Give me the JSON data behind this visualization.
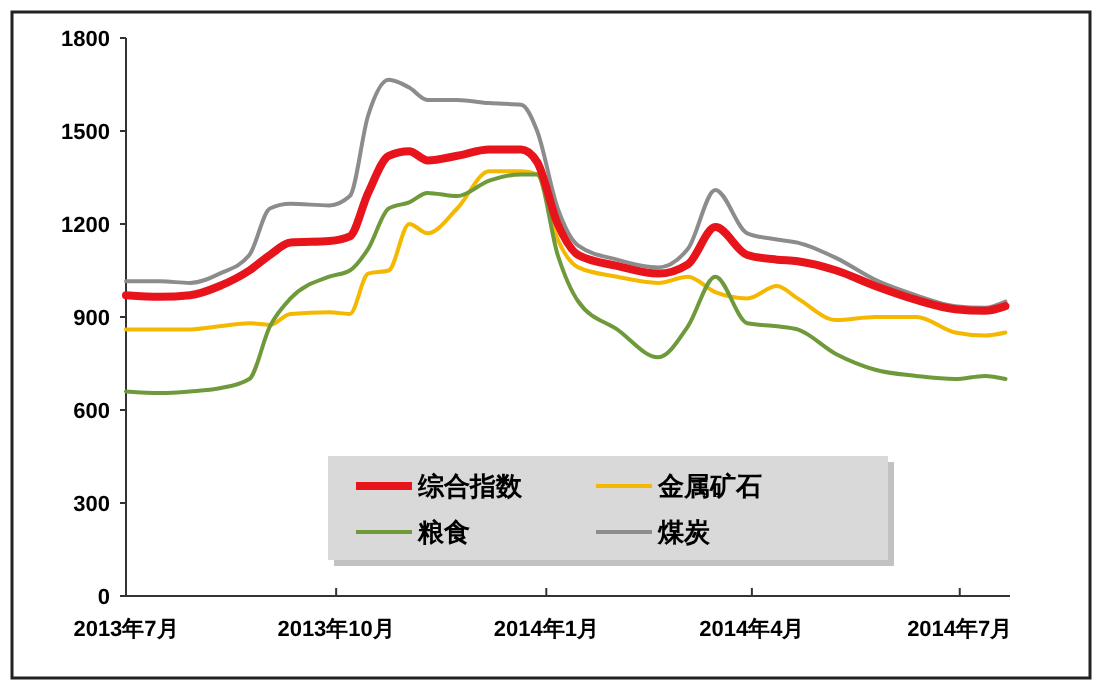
{
  "chart_data": {
    "type": "line",
    "x": [
      "2013-07-01",
      "2013-07-16",
      "2013-07-29",
      "2013-08-11",
      "2013-08-24",
      "2013-09-02",
      "2013-09-11",
      "2013-09-28",
      "2013-10-07",
      "2013-10-15",
      "2013-10-24",
      "2013-11-02",
      "2013-11-10",
      "2013-11-23",
      "2013-12-07",
      "2013-12-21",
      "2013-12-28",
      "2014-01-06",
      "2014-01-15",
      "2014-02-01",
      "2014-02-19",
      "2014-03-04",
      "2014-03-16",
      "2014-03-30",
      "2014-04-12",
      "2014-04-21",
      "2014-05-08",
      "2014-05-25",
      "2014-06-12",
      "2014-06-29",
      "2014-07-12",
      "2014-07-21"
    ],
    "xlim": [
      "2013-07-01",
      "2014-07-23"
    ],
    "xticks": [
      {
        "value": "2013-07-01",
        "label": "2013年7月"
      },
      {
        "value": "2013-10-01",
        "label": "2013年10月"
      },
      {
        "value": "2014-01-01",
        "label": "2014年1月"
      },
      {
        "value": "2014-04-01",
        "label": "2014年4月"
      },
      {
        "value": "2014-07-01",
        "label": "2014年7月"
      }
    ],
    "ylim": [
      0,
      1800
    ],
    "yticks": [
      0,
      300,
      600,
      900,
      1200,
      1500,
      1800
    ],
    "legend": "bottom",
    "grid": false,
    "series": [
      {
        "name": "综合指数",
        "color": "#e8141c",
        "values": [
          970,
          965,
          970,
          1000,
          1050,
          1100,
          1140,
          1145,
          1160,
          1300,
          1420,
          1435,
          1405,
          1420,
          1440,
          1440,
          1400,
          1200,
          1100,
          1065,
          1040,
          1070,
          1190,
          1100,
          1085,
          1080,
          1050,
          1000,
          955,
          925,
          920,
          935
        ]
      },
      {
        "name": "金属矿石",
        "color": "#f5b800",
        "values": [
          860,
          860,
          860,
          870,
          880,
          875,
          910,
          915,
          910,
          1040,
          1050,
          1200,
          1170,
          1250,
          1370,
          1370,
          1360,
          1150,
          1060,
          1030,
          1010,
          1030,
          980,
          960,
          1000,
          960,
          890,
          900,
          900,
          850,
          840,
          850
        ]
      },
      {
        "name": "粮食",
        "color": "#6e9a3b",
        "values": [
          660,
          655,
          660,
          670,
          700,
          870,
          960,
          1030,
          1050,
          1120,
          1250,
          1270,
          1300,
          1290,
          1340,
          1360,
          1360,
          1100,
          950,
          860,
          770,
          870,
          1030,
          880,
          870,
          860,
          780,
          730,
          710,
          700,
          710,
          700
        ]
      },
      {
        "name": "煤炭",
        "color": "#8c8c8c",
        "values": [
          1015,
          1015,
          1010,
          1040,
          1100,
          1250,
          1265,
          1260,
          1290,
          1550,
          1665,
          1640,
          1600,
          1600,
          1590,
          1585,
          1500,
          1250,
          1130,
          1085,
          1060,
          1120,
          1310,
          1170,
          1150,
          1140,
          1090,
          1020,
          970,
          935,
          930,
          950
        ]
      }
    ]
  }
}
